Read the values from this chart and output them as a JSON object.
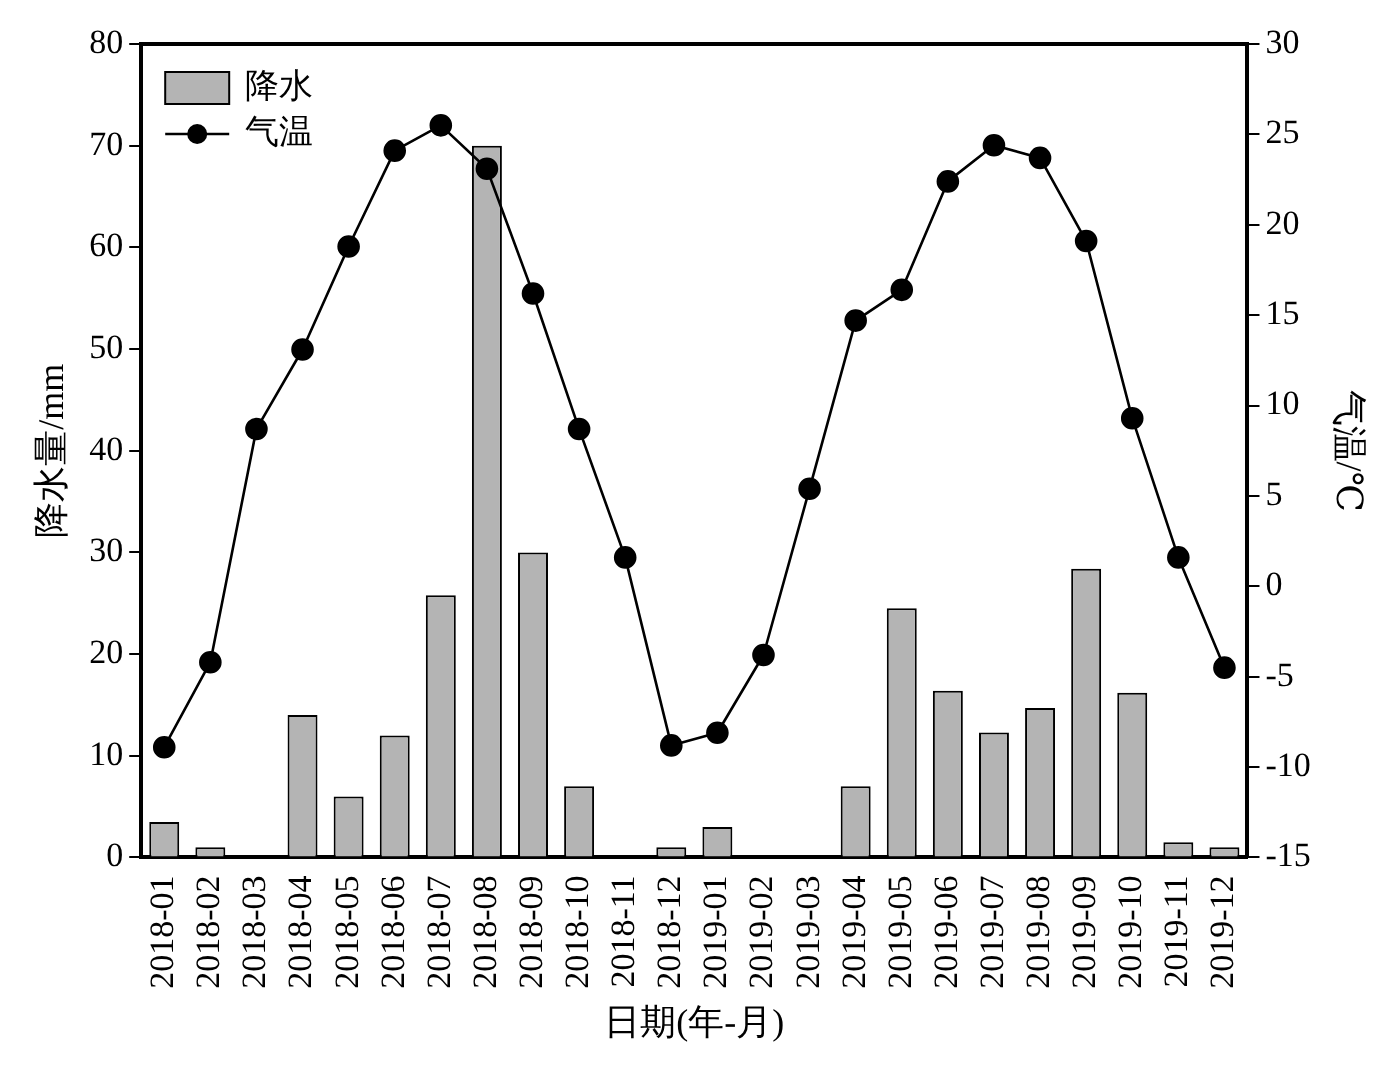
{
  "chart_data": {
    "type": "bar",
    "xlabel": "日期(年-月)",
    "ylabel": "降水量/mm",
    "y2label": "气温/℃",
    "categories": [
      "2018-01",
      "2018-02",
      "2018-03",
      "2018-04",
      "2018-05",
      "2018-06",
      "2018-07",
      "2018-08",
      "2018-09",
      "2018-10",
      "2018-11",
      "2018-12",
      "2019-01",
      "2019-02",
      "2019-03",
      "2019-04",
      "2019-05",
      "2019-06",
      "2019-07",
      "2019-08",
      "2019-09",
      "2019-10",
      "2019-11",
      "2019-12"
    ],
    "series": [
      {
        "name": "降水",
        "color": "#b4b4b4",
        "values": [
          3.5,
          1,
          0,
          14,
          6,
          12,
          25.8,
          70,
          30,
          7,
          0,
          1,
          3,
          0,
          0,
          7,
          24.5,
          16.4,
          12.3,
          14.7,
          28.4,
          16.2,
          1.5,
          1
        ]
      },
      {
        "name": "气温",
        "type": "line",
        "axis": "y2",
        "color": "#000000",
        "marker": "circle",
        "values": [
          -8.9,
          -4.2,
          8.7,
          13.1,
          18.8,
          24.1,
          25.5,
          23.1,
          16.2,
          8.7,
          1.6,
          -8.8,
          -8.1,
          -3.8,
          5.4,
          14.7,
          16.4,
          22.4,
          24.4,
          23.7,
          19.1,
          9.3,
          1.6,
          -4.5
        ]
      }
    ],
    "ylim": [
      0,
      80
    ],
    "yticks": [
      0,
      10,
      20,
      30,
      40,
      50,
      60,
      70,
      80
    ],
    "y2lim": [
      -15,
      30
    ],
    "y2ticks": [
      -15,
      -10,
      -5,
      0,
      5,
      10,
      15,
      20,
      25,
      30
    ],
    "grid": false,
    "legend": "top left"
  }
}
